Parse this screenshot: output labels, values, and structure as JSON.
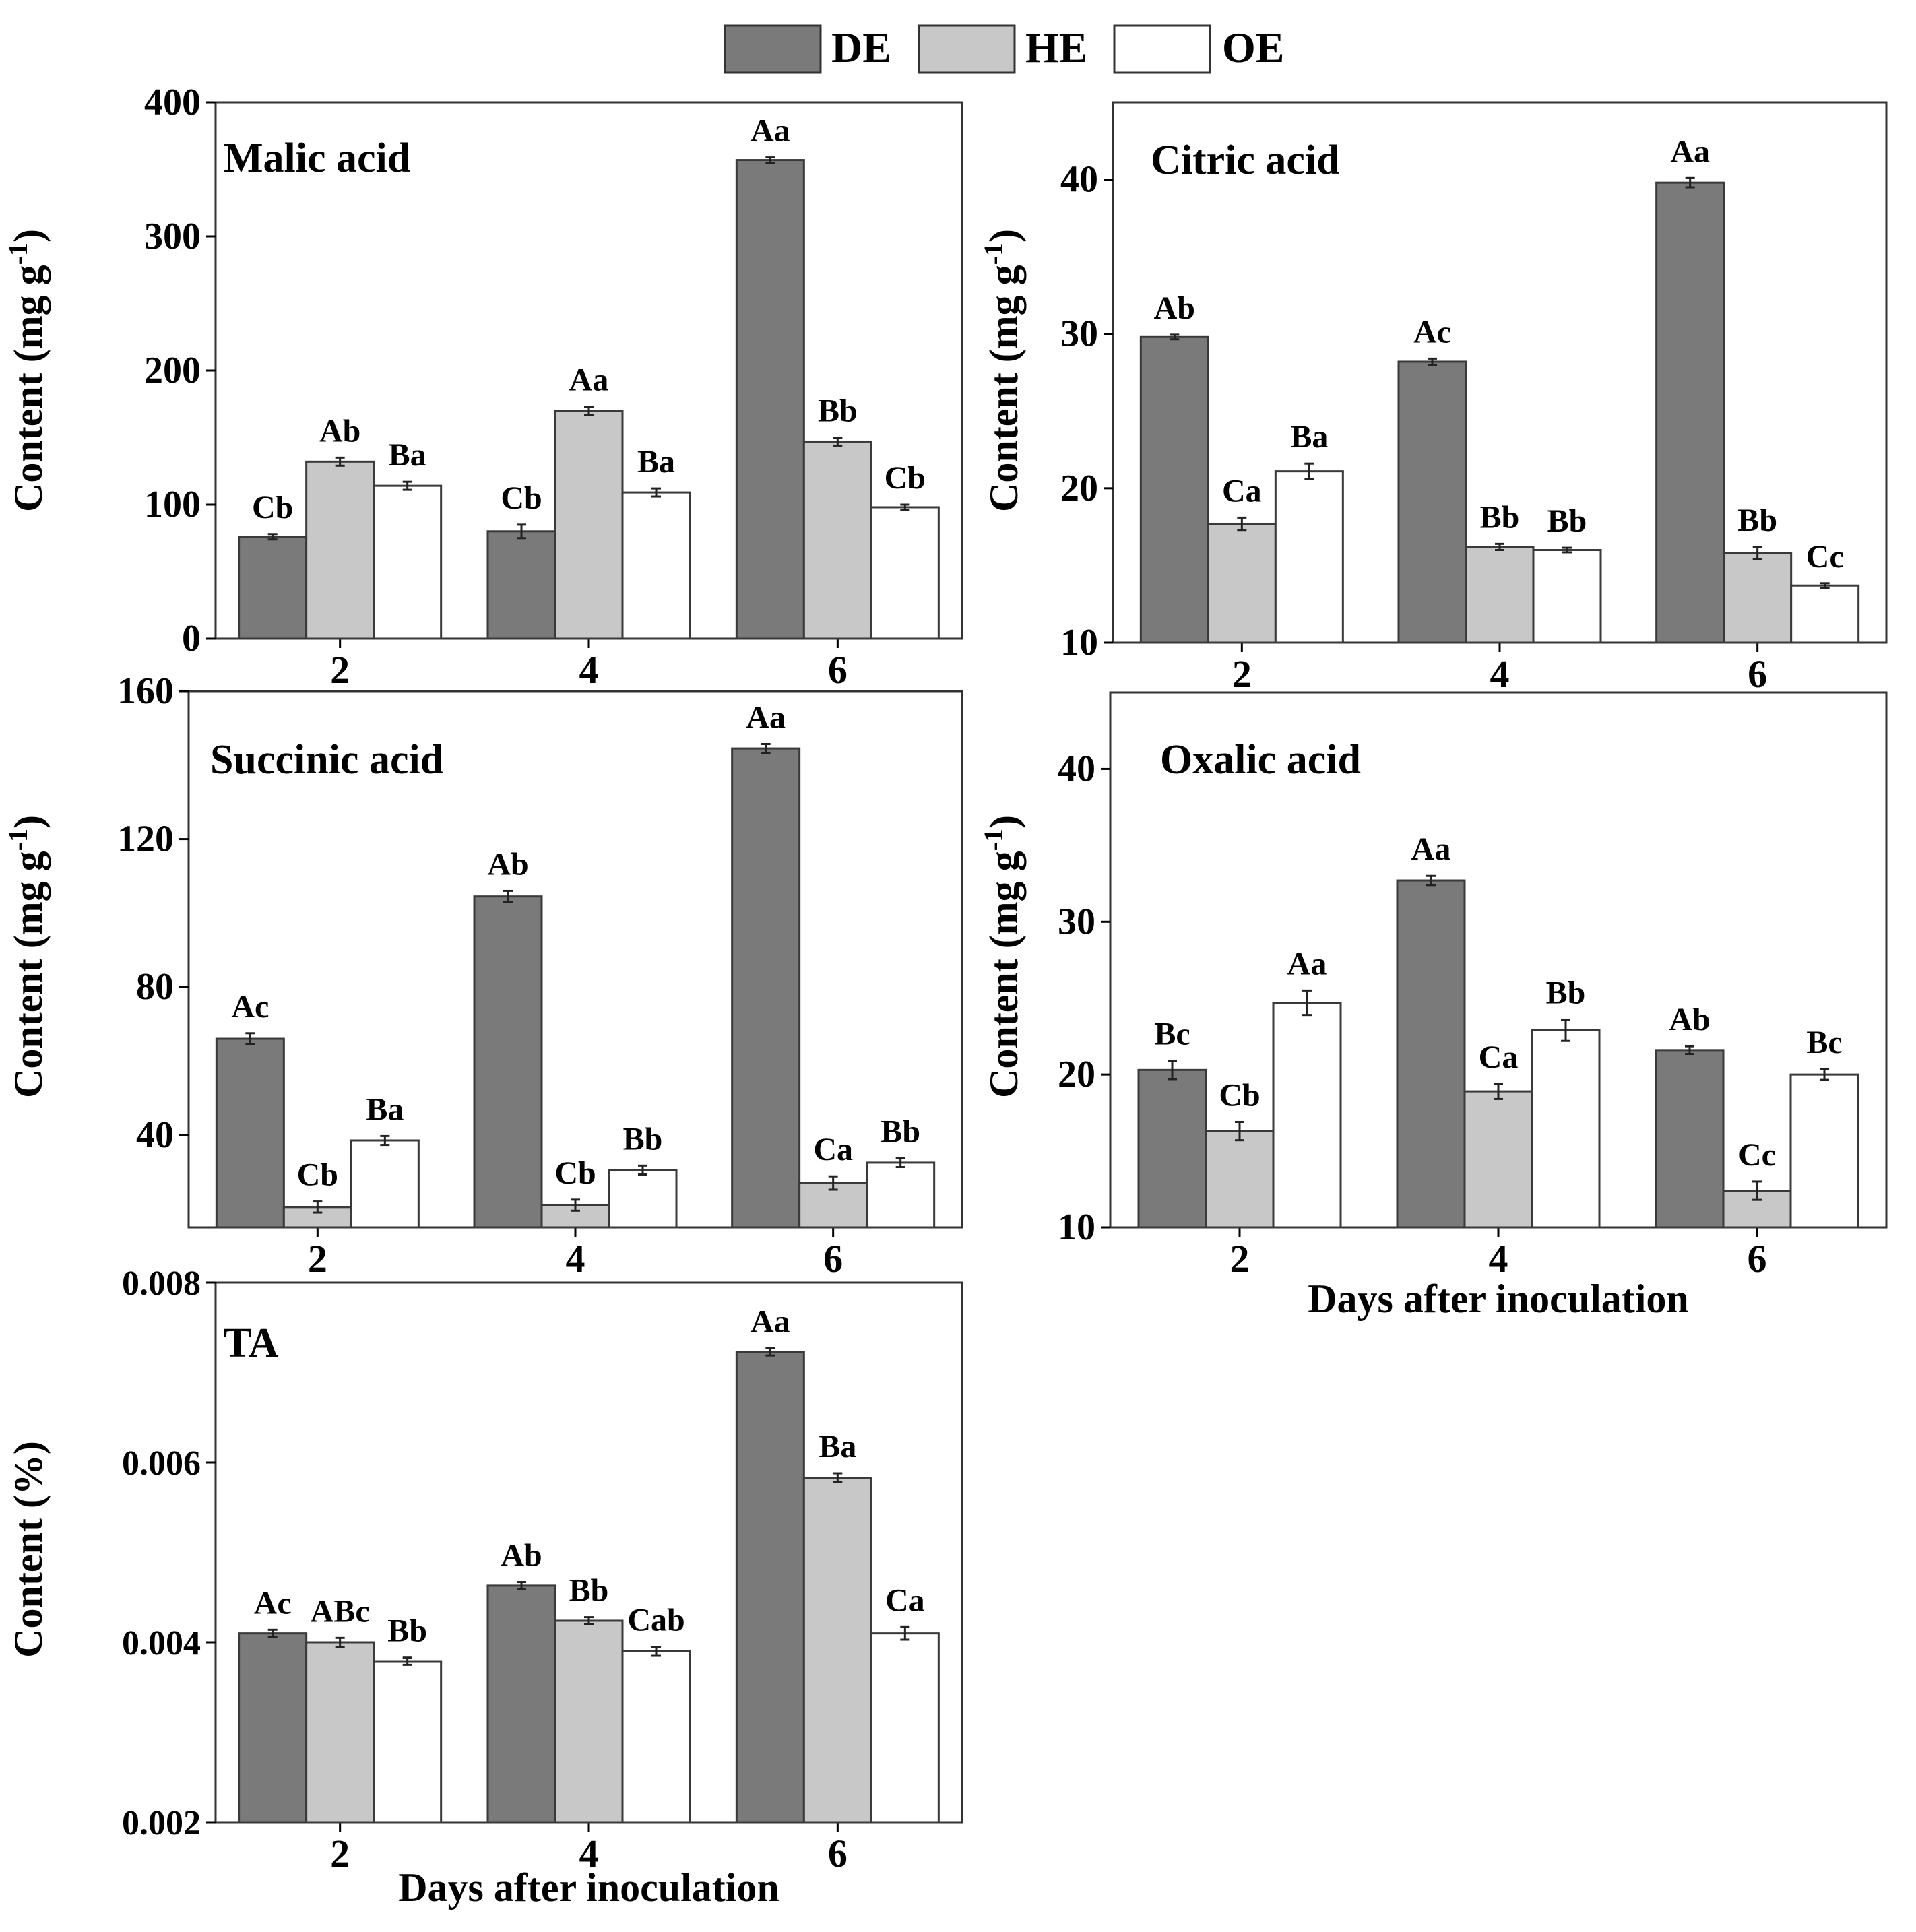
{
  "legend": {
    "entries": [
      {
        "name": "DE",
        "color": "#7a7a7a"
      },
      {
        "name": "HE",
        "color": "#c8c8c8"
      },
      {
        "name": "OE",
        "color": "#ffffff"
      }
    ]
  },
  "x_title": "Days after inoculation",
  "chart_data": [
    {
      "id": "malic",
      "type": "bar",
      "title": "Malic acid",
      "ylabel": "Content (mg g",
      "ylabel_sup": "-1",
      "ylabel_close": ")",
      "ylim": [
        0,
        400
      ],
      "yticks": [
        "0",
        "100",
        "200",
        "300",
        "400"
      ],
      "categories": [
        "2",
        "4",
        "6"
      ],
      "xlabel": "",
      "series": [
        {
          "name": "DE",
          "values": [
            76,
            80,
            357
          ],
          "errors": [
            2,
            5,
            2
          ],
          "labels": [
            "Cb",
            "Cb",
            "Aa"
          ]
        },
        {
          "name": "HE",
          "values": [
            132,
            170,
            147
          ],
          "errors": [
            3,
            3,
            3
          ],
          "labels": [
            "Ab",
            "Aa",
            "Bb"
          ]
        },
        {
          "name": "OE",
          "values": [
            114,
            109,
            98
          ],
          "errors": [
            3,
            3,
            2
          ],
          "labels": [
            "Ba",
            "Ba",
            "Cb"
          ]
        }
      ]
    },
    {
      "id": "citric",
      "type": "bar",
      "title": "Citric acid",
      "ylabel": "Content (mg g",
      "ylabel_sup": "-1",
      "ylabel_close": ")",
      "ylim": [
        10,
        45
      ],
      "yticks": [
        "10",
        "20",
        "30",
        "40"
      ],
      "categories": [
        "2",
        "4",
        "6"
      ],
      "xlabel": "",
      "series": [
        {
          "name": "DE",
          "values": [
            29.8,
            28.2,
            39.8
          ],
          "errors": [
            0.15,
            0.2,
            0.3
          ],
          "labels": [
            "Ab",
            "Ac",
            "Aa"
          ]
        },
        {
          "name": "HE",
          "values": [
            17.7,
            16.2,
            15.8
          ],
          "errors": [
            0.4,
            0.2,
            0.4
          ],
          "labels": [
            "Ca",
            "Bb",
            "Bb"
          ]
        },
        {
          "name": "OE",
          "values": [
            21.1,
            16.0,
            13.7
          ],
          "errors": [
            0.5,
            0.15,
            0.15
          ],
          "labels": [
            "Ba",
            "Bb",
            "Cc"
          ]
        }
      ]
    },
    {
      "id": "succinic",
      "type": "bar",
      "title": "Succinic acid",
      "ylabel": "Content (mg g",
      "ylabel_sup": "-1",
      "ylabel_close": ")",
      "ylim": [
        15,
        160
      ],
      "yticks": [
        "40",
        "80",
        "120",
        "160"
      ],
      "categories": [
        "2",
        "4",
        "6"
      ],
      "xlabel": "",
      "series": [
        {
          "name": "DE",
          "values": [
            66,
            104.5,
            144.5
          ],
          "errors": [
            1.5,
            1.5,
            1.2
          ],
          "labels": [
            "Ac",
            "Ab",
            "Aa"
          ]
        },
        {
          "name": "HE",
          "values": [
            20.5,
            21,
            27
          ],
          "errors": [
            1.5,
            1.5,
            1.8
          ],
          "labels": [
            "Cb",
            "Cb",
            "Ca"
          ]
        },
        {
          "name": "OE",
          "values": [
            38.5,
            30.5,
            32.5
          ],
          "errors": [
            1.2,
            1.2,
            1.2
          ],
          "labels": [
            "Ba",
            "Bb",
            "Bb"
          ]
        }
      ]
    },
    {
      "id": "oxalic",
      "type": "bar",
      "title": "Oxalic acid",
      "ylabel": "Content (mg g",
      "ylabel_sup": "-1",
      "ylabel_close": ")",
      "ylim": [
        10,
        45
      ],
      "yticks": [
        "10",
        "20",
        "30",
        "40"
      ],
      "categories": [
        "2",
        "4",
        "6"
      ],
      "xlabel": "Days after inoculation",
      "series": [
        {
          "name": "DE",
          "values": [
            20.3,
            32.7,
            21.6
          ],
          "errors": [
            0.6,
            0.3,
            0.25
          ],
          "labels": [
            "Bc",
            "Aa",
            "Ab"
          ]
        },
        {
          "name": "HE",
          "values": [
            16.3,
            18.9,
            12.4
          ],
          "errors": [
            0.6,
            0.5,
            0.6
          ],
          "labels": [
            "Cb",
            "Ca",
            "Cc"
          ]
        },
        {
          "name": "OE",
          "values": [
            24.7,
            22.9,
            20.0
          ],
          "errors": [
            0.8,
            0.7,
            0.35
          ],
          "labels": [
            "Aa",
            "Bb",
            "Bc"
          ]
        }
      ]
    },
    {
      "id": "ta",
      "type": "bar",
      "title": "TA",
      "ylabel": "Content (%)",
      "ylabel_sup": "",
      "ylabel_close": "",
      "ylim": [
        0.002,
        0.008
      ],
      "yticks": [
        "0.002",
        "0.004",
        "0.006",
        "0.008"
      ],
      "categories": [
        "2",
        "4",
        "6"
      ],
      "xlabel": "Days after inoculation",
      "series": [
        {
          "name": "DE",
          "values": [
            0.0041,
            0.00463,
            0.00723
          ],
          "errors": [
            4e-05,
            4e-05,
            4e-05
          ],
          "labels": [
            "Ac",
            "Ab",
            "Aa"
          ]
        },
        {
          "name": "HE",
          "values": [
            0.004,
            0.00424,
            0.00583
          ],
          "errors": [
            5e-05,
            4e-05,
            5e-05
          ],
          "labels": [
            "ABc",
            "Bb",
            "Ba"
          ]
        },
        {
          "name": "OE",
          "values": [
            0.00379,
            0.0039,
            0.0041
          ],
          "errors": [
            4e-05,
            5e-05,
            7e-05
          ],
          "labels": [
            "Bb",
            "Cab",
            "Ca"
          ]
        }
      ]
    }
  ]
}
